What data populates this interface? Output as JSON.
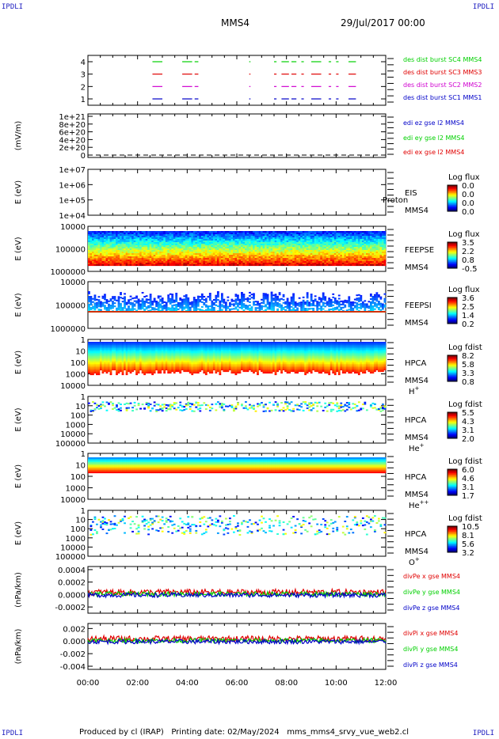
{
  "corners": {
    "tl": "IPDLI",
    "tr": "IPDLI",
    "bl": "IPDLI",
    "br": "IPDLI"
  },
  "header": {
    "spacecraft": "MMS4",
    "date": "29/Jul/2017 00:00"
  },
  "footer": {
    "text": "Produced by cl (IRAP)   Printing date: 02/May/2024   mms_mms4_srvy_vue_web2.cl"
  },
  "time_axis": {
    "ticks": [
      "00:00",
      "02:00",
      "04:00",
      "06:00",
      "08:00",
      "10:00",
      "12:00"
    ],
    "range_hours": [
      0,
      12
    ]
  },
  "colors": {
    "red": "#e00000",
    "green": "#00d000",
    "blue": "#0000c8",
    "magenta": "#d000d0"
  },
  "chart_data": [
    {
      "type": "line",
      "id": "burst",
      "yticks": [
        "1",
        "2",
        "3",
        "4"
      ],
      "ylim": [
        0.5,
        4.5
      ],
      "series": [
        {
          "name": "des dist burst SC1 MMS1",
          "color": "#0000c8",
          "y": 1,
          "intervals": [
            [
              2.6,
              3.0
            ],
            [
              3.8,
              4.2
            ],
            [
              4.3,
              4.45
            ],
            [
              6.5,
              6.55
            ],
            [
              7.5,
              7.6
            ],
            [
              7.8,
              8.1
            ],
            [
              8.2,
              8.4
            ],
            [
              8.6,
              8.7
            ],
            [
              9.0,
              9.4
            ],
            [
              9.7,
              9.8
            ],
            [
              10.0,
              10.1
            ],
            [
              10.5,
              10.8
            ]
          ]
        },
        {
          "name": "des dist burst SC2 MMS2",
          "color": "#d000d0",
          "y": 2,
          "intervals": [
            [
              2.6,
              3.0
            ],
            [
              3.8,
              4.2
            ],
            [
              4.3,
              4.45
            ],
            [
              6.5,
              6.55
            ],
            [
              7.5,
              7.6
            ],
            [
              7.8,
              8.1
            ],
            [
              8.2,
              8.4
            ],
            [
              8.6,
              8.7
            ],
            [
              9.0,
              9.4
            ],
            [
              9.7,
              9.8
            ],
            [
              10.0,
              10.1
            ],
            [
              10.5,
              10.8
            ]
          ]
        },
        {
          "name": "des dist burst SC3 MMS3",
          "color": "#e00000",
          "y": 3,
          "intervals": [
            [
              2.6,
              3.0
            ],
            [
              3.8,
              4.2
            ],
            [
              4.3,
              4.45
            ],
            [
              6.5,
              6.55
            ],
            [
              7.5,
              7.6
            ],
            [
              7.8,
              8.1
            ],
            [
              8.2,
              8.4
            ],
            [
              8.6,
              8.7
            ],
            [
              9.0,
              9.4
            ],
            [
              9.7,
              9.8
            ],
            [
              10.0,
              10.1
            ],
            [
              10.5,
              10.8
            ]
          ]
        },
        {
          "name": "des dist burst SC4 MMS4",
          "color": "#00d000",
          "y": 4,
          "intervals": [
            [
              2.6,
              3.0
            ],
            [
              3.8,
              4.2
            ],
            [
              4.3,
              4.45
            ],
            [
              6.5,
              6.55
            ],
            [
              7.5,
              7.6
            ],
            [
              7.8,
              8.1
            ],
            [
              8.2,
              8.4
            ],
            [
              8.6,
              8.7
            ],
            [
              9.0,
              9.4
            ],
            [
              9.7,
              9.8
            ],
            [
              10.0,
              10.1
            ],
            [
              10.5,
              10.8
            ]
          ]
        }
      ]
    },
    {
      "type": "line",
      "id": "edi",
      "ylabel": "(mV/m)",
      "yticks": [
        "0",
        "2e+20",
        "4e+20",
        "6e+20",
        "8e+20",
        "1e+21"
      ],
      "series": [
        {
          "name": "edi ex gse l2 MMS4",
          "color": "#e00000"
        },
        {
          "name": "edi ey gse l2 MMS4",
          "color": "#00d000"
        },
        {
          "name": "edi ez gse l2 MMS4",
          "color": "#0000c8"
        }
      ]
    },
    {
      "type": "heatmap",
      "id": "eis",
      "ylabel": "E (eV)",
      "yticks": [
        "1e+04",
        "1e+05",
        "1e+06",
        "1e+07"
      ],
      "scale": "log",
      "labels": [
        "EIS",
        "MMS4"
      ],
      "overlay": "Proton",
      "colorbar": {
        "title": "Log flux",
        "ticks": [
          "0.0",
          "0.0",
          "0.0",
          "0.0"
        ]
      }
    },
    {
      "type": "heatmap",
      "id": "feepse",
      "ylabel": "E (eV)",
      "yticks": [
        "1000000",
        "100000",
        "10000"
      ],
      "scale": "log",
      "labels": [
        "FEEPSE",
        "MMS4"
      ],
      "colorbar": {
        "title": "Log flux",
        "ticks": [
          "3.5",
          "2.2",
          "0.8",
          "-0.5"
        ]
      }
    },
    {
      "type": "heatmap",
      "id": "feepsi",
      "ylabel": "E (eV)",
      "yticks": [
        "1000000",
        "100000",
        "10000"
      ],
      "scale": "log",
      "labels": [
        "FEEPSI",
        "MMS4"
      ],
      "colorbar": {
        "title": "Log flux",
        "ticks": [
          "3.6",
          "2.5",
          "1.4",
          "0.2"
        ]
      }
    },
    {
      "type": "heatmap",
      "id": "hpca_h",
      "ylabel": "E (eV)",
      "yticks": [
        "10000",
        "1000",
        "100",
        "10",
        "1"
      ],
      "scale": "log",
      "labels": [
        "HPCA",
        "MMS4",
        "H"
      ],
      "species_sup": "+",
      "colorbar": {
        "title": "Log fdist",
        "ticks": [
          "8.2",
          "5.8",
          "3.3",
          "0.8"
        ]
      }
    },
    {
      "type": "heatmap",
      "id": "hpca_he",
      "ylabel": "E (eV)",
      "yticks": [
        "100000",
        "10000",
        "1000",
        "100",
        "10",
        "1"
      ],
      "scale": "log",
      "labels": [
        "HPCA",
        "MMS4",
        "He"
      ],
      "species_sup": "+",
      "colorbar": {
        "title": "Log fdist",
        "ticks": [
          "5.5",
          "4.3",
          "3.1",
          "2.0"
        ]
      }
    },
    {
      "type": "heatmap",
      "id": "hpca_hepp",
      "ylabel": "E (eV)",
      "yticks": [
        "10000",
        "1000",
        "100",
        "10",
        "1"
      ],
      "scale": "log",
      "labels": [
        "HPCA",
        "MMS4",
        "He"
      ],
      "species_sup": "++",
      "colorbar": {
        "title": "Log fdist",
        "ticks": [
          "6.0",
          "4.6",
          "3.1",
          "1.7"
        ]
      }
    },
    {
      "type": "heatmap",
      "id": "hpca_o",
      "ylabel": "E (eV)",
      "yticks": [
        "100000",
        "10000",
        "1000",
        "100",
        "10",
        "1"
      ],
      "scale": "log",
      "labels": [
        "HPCA",
        "MMS4",
        "O"
      ],
      "species_sup": "+",
      "colorbar": {
        "title": "Log fdist",
        "ticks": [
          "10.5",
          "8.1",
          "5.6",
          "3.2"
        ]
      }
    },
    {
      "type": "line",
      "id": "divpe",
      "ylabel": "(nPa/km)",
      "yticks": [
        "0.0004",
        "0.0002",
        "0.0000",
        "-0.0002"
      ],
      "ylim": [
        -0.0003,
        0.00045
      ],
      "series": [
        {
          "name": "divPe x gse MMS4",
          "color": "#e00000"
        },
        {
          "name": "divPe y gse MMS4",
          "color": "#00d000"
        },
        {
          "name": "divPe z gse MMS4",
          "color": "#0000c8"
        }
      ]
    },
    {
      "type": "line",
      "id": "divpi",
      "ylabel": "(nPa/km)",
      "yticks": [
        "0.002",
        "0.000",
        "-0.002",
        "-0.004"
      ],
      "ylim": [
        -0.0045,
        0.0028
      ],
      "series": [
        {
          "name": "divPi x gse MMS4",
          "color": "#e00000"
        },
        {
          "name": "divPi y gse MMS4",
          "color": "#00d000"
        },
        {
          "name": "divPi z gse MMS4",
          "color": "#0000c8"
        }
      ]
    }
  ]
}
